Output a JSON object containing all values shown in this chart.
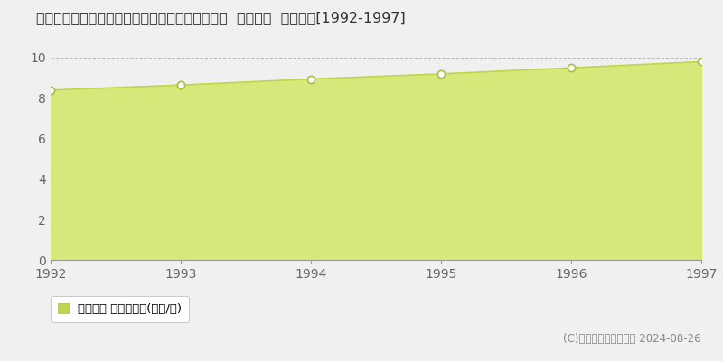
{
  "title": "福井県福井市荒木新保町弐〇字太郎丸３２番１外  地価公示  地価推移[1992-1997]",
  "years": [
    1992,
    1993,
    1994,
    1995,
    1996,
    1997
  ],
  "values": [
    8.4,
    8.65,
    8.95,
    9.2,
    9.5,
    9.8
  ],
  "line_color": "#bdd64a",
  "fill_color": "#d6e87a",
  "fill_alpha": 1.0,
  "marker_facecolor": "white",
  "marker_edgecolor": "#aabb44",
  "ylim": [
    0,
    10
  ],
  "yticks": [
    0,
    2,
    4,
    6,
    8,
    10
  ],
  "grid_color": "#bbbbbb",
  "bg_color": "#f0f0f0",
  "plot_bg_color": "#f0f0f0",
  "legend_label": "地価公示 平均坪単価(万円/坪)",
  "copyright_text": "(C)土地価格ドットコム 2024-08-26",
  "title_fontsize": 11.5,
  "tick_fontsize": 10,
  "legend_fontsize": 9.5,
  "copyright_fontsize": 8.5
}
